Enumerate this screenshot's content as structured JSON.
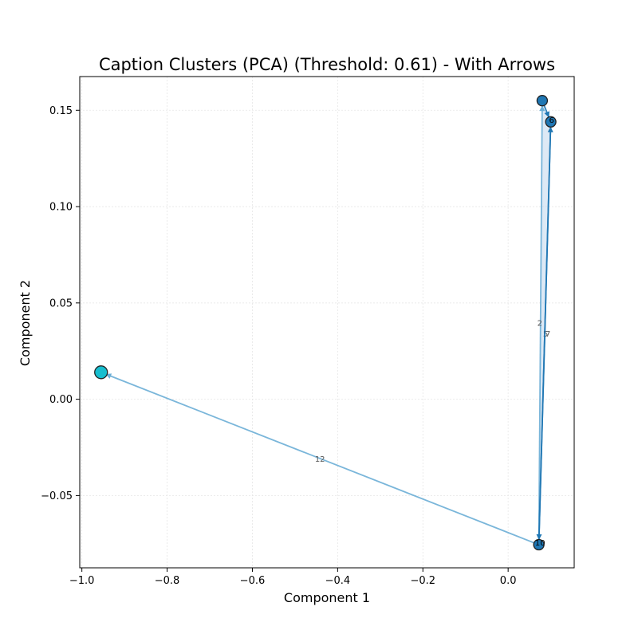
{
  "chart_data": {
    "type": "scatter",
    "title": "Caption Clusters (PCA) (Threshold: 0.61) - With Arrows",
    "xlabel": "Component 1",
    "ylabel": "Component 2",
    "xlim": [
      -1.005,
      0.155
    ],
    "ylim": [
      -0.0875,
      0.1675
    ],
    "xticks": [
      -1.0,
      -0.8,
      -0.6,
      -0.4,
      -0.2,
      0.0
    ],
    "yticks": [
      -0.05,
      0.0,
      0.05,
      0.1,
      0.15
    ],
    "xtick_labels": [
      "−1.0",
      "−0.8",
      "−0.6",
      "−0.4",
      "−0.2",
      "0.0"
    ],
    "ytick_labels": [
      "−0.05",
      "0.00",
      "0.05",
      "0.10",
      "0.15"
    ],
    "grid": true,
    "points": [
      {
        "x": -0.955,
        "y": 0.014,
        "color": "#17becf",
        "size": "large"
      },
      {
        "x": 0.072,
        "y": -0.0755,
        "color": "#1f77b4",
        "size": "normal"
      },
      {
        "x": 0.08,
        "y": 0.155,
        "color": "#1f77b4",
        "size": "normal"
      },
      {
        "x": 0.1,
        "y": 0.144,
        "color": "#1f77b4",
        "size": "normal"
      }
    ],
    "arrows": [
      {
        "from": [
          0.072,
          -0.0755
        ],
        "to": [
          -0.955,
          0.014
        ],
        "label": "12",
        "color": "#6baed6"
      },
      {
        "from": [
          0.072,
          -0.0755
        ],
        "to": [
          0.08,
          0.155
        ],
        "label": "2",
        "color": "#6baed6"
      },
      {
        "from": [
          0.1,
          0.144
        ],
        "to": [
          0.072,
          -0.0755
        ],
        "label": "5",
        "color": "#1f77b4"
      },
      {
        "from": [
          0.072,
          -0.0755
        ],
        "to": [
          0.1,
          0.144
        ],
        "label": "7",
        "color": "#1f77b4"
      },
      {
        "from": [
          0.08,
          0.155
        ],
        "to": [
          0.1,
          0.144
        ],
        "label": "",
        "color": "#1f77b4"
      }
    ],
    "point_labels": [
      {
        "x": 0.075,
        "y": -0.0745,
        "text": "10"
      },
      {
        "x": 0.102,
        "y": 0.145,
        "text": "6"
      }
    ],
    "fill_color": "#c6dbef"
  }
}
